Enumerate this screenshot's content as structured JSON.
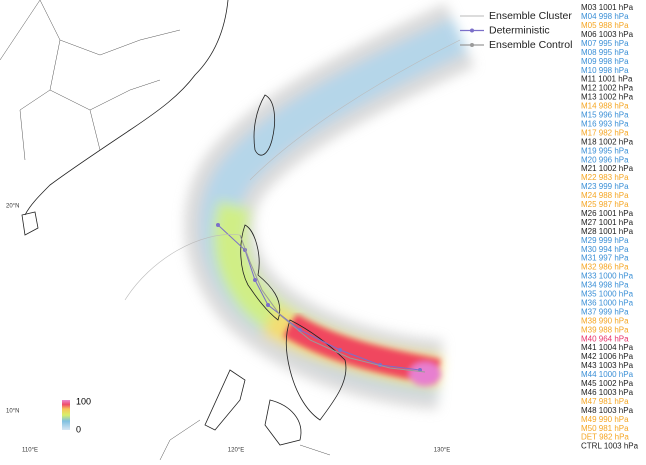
{
  "legend": {
    "items": [
      {
        "label": "Ensemble Cluster",
        "color": "#c8c8c8"
      },
      {
        "label": "Deterministic",
        "color": "#7b6fc9"
      },
      {
        "label": "Ensemble Control",
        "color": "#9a9a9a"
      }
    ]
  },
  "axes": {
    "lat_labels": [
      "20°N",
      "10°N"
    ],
    "lon_labels": [
      "110°E",
      "120°E",
      "130°E"
    ]
  },
  "colorbar": {
    "max_label": "100",
    "min_label": "0"
  },
  "members": [
    {
      "label": "M03 1001 hPa",
      "color": "#222222"
    },
    {
      "label": "M04 998 hPa",
      "color": "#3a8fd6"
    },
    {
      "label": "M05 988 hPa",
      "color": "#f5a623"
    },
    {
      "label": "M06 1003 hPa",
      "color": "#222222"
    },
    {
      "label": "M07 995 hPa",
      "color": "#3a8fd6"
    },
    {
      "label": "M08 995 hPa",
      "color": "#3a8fd6"
    },
    {
      "label": "M09 998 hPa",
      "color": "#3a8fd6"
    },
    {
      "label": "M10 998 hPa",
      "color": "#3a8fd6"
    },
    {
      "label": "M11 1001 hPa",
      "color": "#222222"
    },
    {
      "label": "M12 1002 hPa",
      "color": "#222222"
    },
    {
      "label": "M13 1002 hPa",
      "color": "#222222"
    },
    {
      "label": "M14 988 hPa",
      "color": "#f5a623"
    },
    {
      "label": "M15 996 hPa",
      "color": "#3a8fd6"
    },
    {
      "label": "M16 993 hPa",
      "color": "#3a8fd6"
    },
    {
      "label": "M17 982 hPa",
      "color": "#f5a623"
    },
    {
      "label": "M18 1002 hPa",
      "color": "#222222"
    },
    {
      "label": "M19 995 hPa",
      "color": "#3a8fd6"
    },
    {
      "label": "M20 996 hPa",
      "color": "#3a8fd6"
    },
    {
      "label": "M21 1002 hPa",
      "color": "#222222"
    },
    {
      "label": "M22 983 hPa",
      "color": "#f5a623"
    },
    {
      "label": "M23 999 hPa",
      "color": "#3a8fd6"
    },
    {
      "label": "M24 988 hPa",
      "color": "#f5a623"
    },
    {
      "label": "M25 987 hPa",
      "color": "#f5a623"
    },
    {
      "label": "M26 1001 hPa",
      "color": "#222222"
    },
    {
      "label": "M27 1001 hPa",
      "color": "#222222"
    },
    {
      "label": "M28 1001 hPa",
      "color": "#222222"
    },
    {
      "label": "M29 999 hPa",
      "color": "#3a8fd6"
    },
    {
      "label": "M30 994 hPa",
      "color": "#3a8fd6"
    },
    {
      "label": "M31 997 hPa",
      "color": "#3a8fd6"
    },
    {
      "label": "M32 986 hPa",
      "color": "#f5a623"
    },
    {
      "label": "M33 1000 hPa",
      "color": "#3a8fd6"
    },
    {
      "label": "M34 998 hPa",
      "color": "#3a8fd6"
    },
    {
      "label": "M35 1000 hPa",
      "color": "#3a8fd6"
    },
    {
      "label": "M36 1000 hPa",
      "color": "#3a8fd6"
    },
    {
      "label": "M37 999 hPa",
      "color": "#3a8fd6"
    },
    {
      "label": "M38 990 hPa",
      "color": "#f5a623"
    },
    {
      "label": "M39 988 hPa",
      "color": "#f5a623"
    },
    {
      "label": "M40 964 hPa",
      "color": "#e8336b"
    },
    {
      "label": "M41 1004 hPa",
      "color": "#222222"
    },
    {
      "label": "M42 1006 hPa",
      "color": "#222222"
    },
    {
      "label": "M43 1003 hPa",
      "color": "#222222"
    },
    {
      "label": "M44 1000 hPa",
      "color": "#3a8fd6"
    },
    {
      "label": "M45 1002 hPa",
      "color": "#222222"
    },
    {
      "label": "M46 1003 hPa",
      "color": "#222222"
    },
    {
      "label": "M47 981 hPa",
      "color": "#f5a623"
    },
    {
      "label": "M48 1003 hPa",
      "color": "#222222"
    },
    {
      "label": "M49 990 hPa",
      "color": "#f5a623"
    },
    {
      "label": "M50 981 hPa",
      "color": "#f5a623"
    },
    {
      "label": "DET 982 hPa",
      "color": "#f5a623"
    },
    {
      "label": "CTRL 1003 hPa",
      "color": "#222222"
    }
  ]
}
